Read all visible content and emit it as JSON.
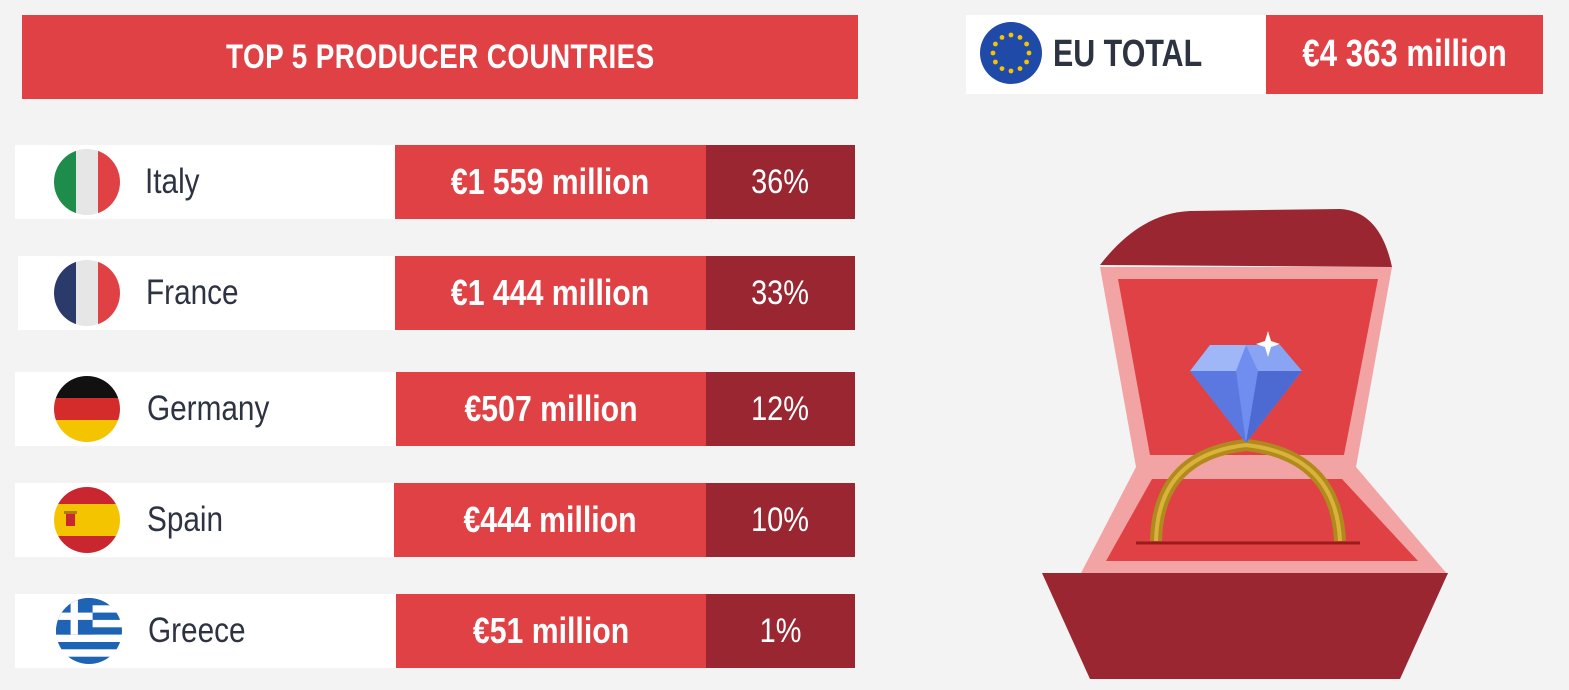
{
  "header": {
    "title": "TOP 5 PRODUCER COUNTRIES"
  },
  "eu_total": {
    "label": "EU TOTAL",
    "value": "€4 363 million",
    "flag_icon": "eu-flag-icon"
  },
  "countries": [
    {
      "name": "Italy",
      "value": "€1 559 million",
      "percent": "36%",
      "flag_icon": "italy-flag-icon"
    },
    {
      "name": "France",
      "value": "€1 444 million",
      "percent": "33%",
      "flag_icon": "france-flag-icon"
    },
    {
      "name": "Germany",
      "value": "€507 million",
      "percent": "12%",
      "flag_icon": "germany-flag-icon"
    },
    {
      "name": "Spain",
      "value": "€444 million",
      "percent": "10%",
      "flag_icon": "spain-flag-icon"
    },
    {
      "name": "Greece",
      "value": "€51 million",
      "percent": "1%",
      "flag_icon": "greece-flag-icon"
    }
  ],
  "illustration": {
    "icon": "ring-in-box-icon"
  },
  "colors": {
    "accent_red": "#e04145",
    "dark_red": "#9a2631",
    "text_dark": "#2d3340",
    "background": "#f3f3f3"
  }
}
